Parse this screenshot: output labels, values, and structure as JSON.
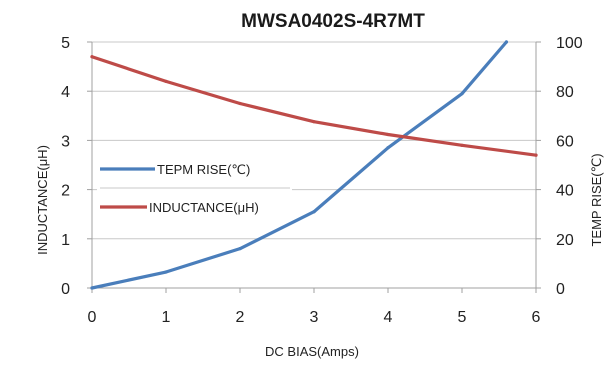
{
  "chart_data": {
    "type": "line",
    "title": "MWSA0402S-4R7MT",
    "xlabel": "DC BIAS(Amps)",
    "ylabel_left": "INDUCTANCE(μH)",
    "ylabel_right": "TEMP RISE(℃)",
    "xlim": [
      0,
      6
    ],
    "ylim_left": [
      0,
      5
    ],
    "ylim_right": [
      0,
      100
    ],
    "x_ticks": [
      "0",
      "1",
      "2",
      "3",
      "4",
      "5",
      "6"
    ],
    "y_left_ticks": [
      "0",
      "1",
      "2",
      "3",
      "4",
      "5"
    ],
    "y_right_ticks": [
      "0",
      "20",
      "40",
      "60",
      "80",
      "100"
    ],
    "grid": "horizontal",
    "legend_position": "left",
    "series": [
      {
        "name": "TEPM RISE(℃)",
        "axis": "right",
        "color": "#4a7ebb",
        "x": [
          0,
          1,
          2,
          3,
          4,
          5,
          5.6
        ],
        "y": [
          0,
          6.5,
          16,
          31,
          57,
          79,
          100
        ]
      },
      {
        "name": "INDUCTANCE(μH)",
        "axis": "left",
        "color": "#be4b48",
        "x": [
          0,
          1,
          2,
          3,
          4,
          5,
          6
        ],
        "y": [
          4.7,
          4.2,
          3.75,
          3.38,
          3.12,
          2.9,
          2.7
        ]
      }
    ]
  }
}
